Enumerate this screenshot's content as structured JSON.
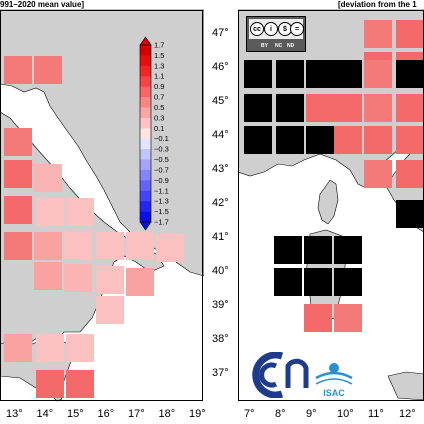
{
  "left_panel": {
    "header": "991–2020 mean value]",
    "lon_labels": [
      "13°",
      "14°",
      "15°",
      "16°",
      "17°",
      "18°",
      "19°"
    ],
    "colorbar": {
      "ticks": [
        "1.7",
        "1.5",
        "1.3",
        "1.1",
        "0.9",
        "0.7",
        "0.5",
        "0.3",
        "0.1",
        "−0.1",
        "−0.3",
        "−0.5",
        "−0.7",
        "−0.9",
        "−1.1",
        "−1.3",
        "−1.5",
        "−1.7"
      ],
      "colors": [
        "#d80000",
        "#e80e0e",
        "#f22626",
        "#f84444",
        "#fb6464",
        "#fc8484",
        "#fda4a4",
        "#fec3c3",
        "#ffe4e4",
        "#e4e4ff",
        "#c3c3ff",
        "#a4a4fd",
        "#8484fc",
        "#6464fb",
        "#4444f8",
        "#2626f2",
        "#0e0ee8"
      ]
    }
  },
  "right_panel": {
    "header": "[deviation from the 1",
    "lat_labels": [
      "47°",
      "46°",
      "45°",
      "44°",
      "43°",
      "42°",
      "41°",
      "40°",
      "39°",
      "38°",
      "37°"
    ],
    "lon_labels": [
      "7°",
      "8°",
      "9°",
      "10°",
      "11°",
      "12°"
    ],
    "license_badge": {
      "icons": [
        "cc",
        "by",
        "nc",
        "nd"
      ],
      "glyphs": [
        "cc",
        "i",
        "$",
        "="
      ],
      "captions": [
        "BY",
        "NC",
        "ND"
      ]
    },
    "logo_text": "ISAC"
  },
  "colors": {
    "land": "#cfcfcf",
    "sea": "#ffffff",
    "no_data": "#000000",
    "grid_gap": "#ffffff"
  }
}
